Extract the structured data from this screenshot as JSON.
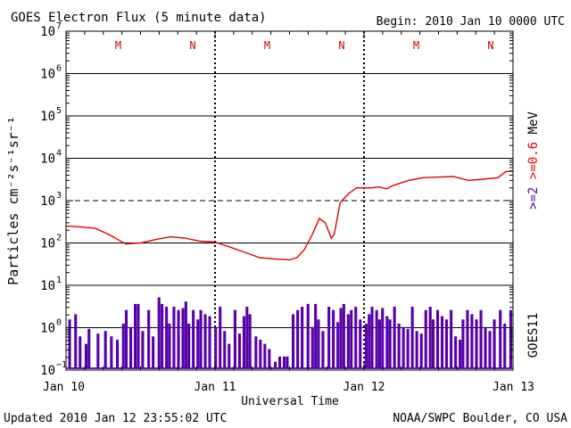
{
  "chart_data": {
    "type": "line",
    "title": "GOES Electron Flux (5 minute data)",
    "begin_label": "Begin: 2010 Jan 10 0000 UTC",
    "xlabel": "Universal Time",
    "ylabel": "Particles cm⁻²s⁻¹sr⁻¹",
    "y_scale": "log",
    "ylim": [
      0.1,
      10000000
    ],
    "y_ticks": [
      {
        "value": 0.1,
        "base": "10",
        "exp": "−1"
      },
      {
        "value": 1,
        "base": "10",
        "exp": "0"
      },
      {
        "value": 10,
        "base": "10",
        "exp": "1"
      },
      {
        "value": 100,
        "base": "10",
        "exp": "2"
      },
      {
        "value": 1000,
        "base": "10",
        "exp": "3"
      },
      {
        "value": 10000,
        "base": "10",
        "exp": "4"
      },
      {
        "value": 100000,
        "base": "10",
        "exp": "5"
      },
      {
        "value": 1000000,
        "base": "10",
        "exp": "6"
      },
      {
        "value": 10000000,
        "base": "10",
        "exp": "7"
      }
    ],
    "x_unit": "days since Jan 10 00:00 UTC",
    "xlim": [
      0,
      3
    ],
    "x_ticks": [
      {
        "value": 0,
        "label": "Jan 10"
      },
      {
        "value": 1,
        "label": "Jan 11"
      },
      {
        "value": 2,
        "label": "Jan 12"
      },
      {
        "value": 3,
        "label": "Jan 13"
      }
    ],
    "day_markers": [
      {
        "value": 0.35,
        "label": "M"
      },
      {
        "value": 0.85,
        "label": "N"
      },
      {
        "value": 1.35,
        "label": "M"
      },
      {
        "value": 1.85,
        "label": "N"
      },
      {
        "value": 2.35,
        "label": "M"
      },
      {
        "value": 2.85,
        "label": "N"
      }
    ],
    "threshold": {
      "value": 1000
    },
    "right_labels": {
      "unit": "MeV",
      "red_series": ">=0.6",
      "purple_series": ">=2",
      "satellite": "GOES11"
    },
    "series": [
      {
        "name": ">=0.6",
        "color": "#e00000",
        "points": [
          [
            0.0,
            250
          ],
          [
            0.1,
            240
          ],
          [
            0.2,
            220
          ],
          [
            0.3,
            150
          ],
          [
            0.4,
            95
          ],
          [
            0.5,
            100
          ],
          [
            0.6,
            120
          ],
          [
            0.7,
            140
          ],
          [
            0.8,
            130
          ],
          [
            0.9,
            110
          ],
          [
            1.0,
            105
          ],
          [
            1.1,
            80
          ],
          [
            1.2,
            60
          ],
          [
            1.3,
            45
          ],
          [
            1.4,
            42
          ],
          [
            1.5,
            40
          ],
          [
            1.55,
            45
          ],
          [
            1.6,
            70
          ],
          [
            1.65,
            150
          ],
          [
            1.7,
            380
          ],
          [
            1.74,
            300
          ],
          [
            1.78,
            130
          ],
          [
            1.8,
            160
          ],
          [
            1.84,
            900
          ],
          [
            1.9,
            1500
          ],
          [
            1.95,
            2000
          ],
          [
            2.0,
            2000
          ],
          [
            2.05,
            2000
          ],
          [
            2.1,
            2100
          ],
          [
            2.15,
            1900
          ],
          [
            2.2,
            2300
          ],
          [
            2.3,
            3000
          ],
          [
            2.4,
            3500
          ],
          [
            2.5,
            3600
          ],
          [
            2.6,
            3700
          ],
          [
            2.7,
            3000
          ],
          [
            2.8,
            3200
          ],
          [
            2.9,
            3500
          ],
          [
            2.95,
            4800
          ],
          [
            3.0,
            5000
          ]
        ]
      },
      {
        "name": ">=2",
        "color": "#5500aa",
        "baseline": 0.1,
        "points": [
          [
            0.02,
            1.5
          ],
          [
            0.06,
            2.0
          ],
          [
            0.09,
            0.6
          ],
          [
            0.13,
            0.4
          ],
          [
            0.15,
            0.9
          ],
          [
            0.21,
            0.7
          ],
          [
            0.26,
            0.8
          ],
          [
            0.3,
            0.6
          ],
          [
            0.34,
            0.5
          ],
          [
            0.38,
            1.2
          ],
          [
            0.4,
            2.5
          ],
          [
            0.43,
            1.0
          ],
          [
            0.46,
            3.5
          ],
          [
            0.48,
            3.5
          ],
          [
            0.51,
            0.8
          ],
          [
            0.55,
            2.5
          ],
          [
            0.58,
            0.6
          ],
          [
            0.62,
            5.0
          ],
          [
            0.64,
            3.5
          ],
          [
            0.67,
            3.0
          ],
          [
            0.69,
            1.2
          ],
          [
            0.72,
            3.0
          ],
          [
            0.75,
            2.5
          ],
          [
            0.78,
            2.8
          ],
          [
            0.8,
            4.0
          ],
          [
            0.82,
            1.2
          ],
          [
            0.85,
            2.5
          ],
          [
            0.88,
            1.5
          ],
          [
            0.9,
            2.5
          ],
          [
            0.93,
            2.0
          ],
          [
            0.96,
            1.8
          ],
          [
            1.0,
            1.0
          ],
          [
            1.03,
            3.0
          ],
          [
            1.06,
            0.8
          ],
          [
            1.09,
            0.4
          ],
          [
            1.13,
            2.5
          ],
          [
            1.16,
            0.7
          ],
          [
            1.19,
            1.8
          ],
          [
            1.21,
            3.0
          ],
          [
            1.23,
            2.0
          ],
          [
            1.27,
            0.6
          ],
          [
            1.3,
            0.5
          ],
          [
            1.33,
            0.4
          ],
          [
            1.36,
            0.3
          ],
          [
            1.4,
            0.15
          ],
          [
            1.43,
            0.2
          ],
          [
            1.46,
            0.2
          ],
          [
            1.48,
            0.2
          ],
          [
            1.52,
            2.0
          ],
          [
            1.55,
            2.5
          ],
          [
            1.58,
            3.0
          ],
          [
            1.62,
            3.5
          ],
          [
            1.65,
            1.0
          ],
          [
            1.67,
            3.5
          ],
          [
            1.69,
            1.5
          ],
          [
            1.72,
            0.8
          ],
          [
            1.76,
            3.0
          ],
          [
            1.79,
            2.5
          ],
          [
            1.82,
            1.3
          ],
          [
            1.84,
            2.8
          ],
          [
            1.86,
            3.5
          ],
          [
            1.89,
            2.0
          ],
          [
            1.91,
            2.5
          ],
          [
            1.94,
            3.0
          ],
          [
            1.97,
            1.5
          ],
          [
            2.01,
            1.2
          ],
          [
            2.03,
            2.0
          ],
          [
            2.05,
            3.0
          ],
          [
            2.08,
            2.5
          ],
          [
            2.1,
            1.5
          ],
          [
            2.12,
            2.8
          ],
          [
            2.15,
            1.8
          ],
          [
            2.17,
            1.5
          ],
          [
            2.2,
            3.0
          ],
          [
            2.23,
            1.2
          ],
          [
            2.26,
            1.0
          ],
          [
            2.29,
            0.9
          ],
          [
            2.32,
            3.0
          ],
          [
            2.35,
            0.8
          ],
          [
            2.38,
            0.7
          ],
          [
            2.41,
            2.5
          ],
          [
            2.44,
            3.0
          ],
          [
            2.46,
            1.5
          ],
          [
            2.49,
            2.5
          ],
          [
            2.52,
            1.8
          ],
          [
            2.55,
            1.5
          ],
          [
            2.58,
            2.5
          ],
          [
            2.61,
            0.6
          ],
          [
            2.64,
            0.5
          ],
          [
            2.66,
            1.5
          ],
          [
            2.69,
            2.5
          ],
          [
            2.72,
            2.0
          ],
          [
            2.75,
            1.5
          ],
          [
            2.78,
            2.5
          ],
          [
            2.81,
            1.0
          ],
          [
            2.84,
            0.8
          ],
          [
            2.87,
            1.5
          ],
          [
            2.91,
            2.5
          ],
          [
            2.94,
            1.2
          ],
          [
            2.98,
            2.5
          ]
        ]
      }
    ],
    "grid": true,
    "colors": {
      "red_series": "#e00000",
      "purple_series": "#5500aa",
      "marker_text": "#cc0000"
    }
  },
  "footer": {
    "updated": "Updated 2010 Jan 12 23:55:02 UTC",
    "credit": "NOAA/SWPC Boulder, CO USA"
  }
}
